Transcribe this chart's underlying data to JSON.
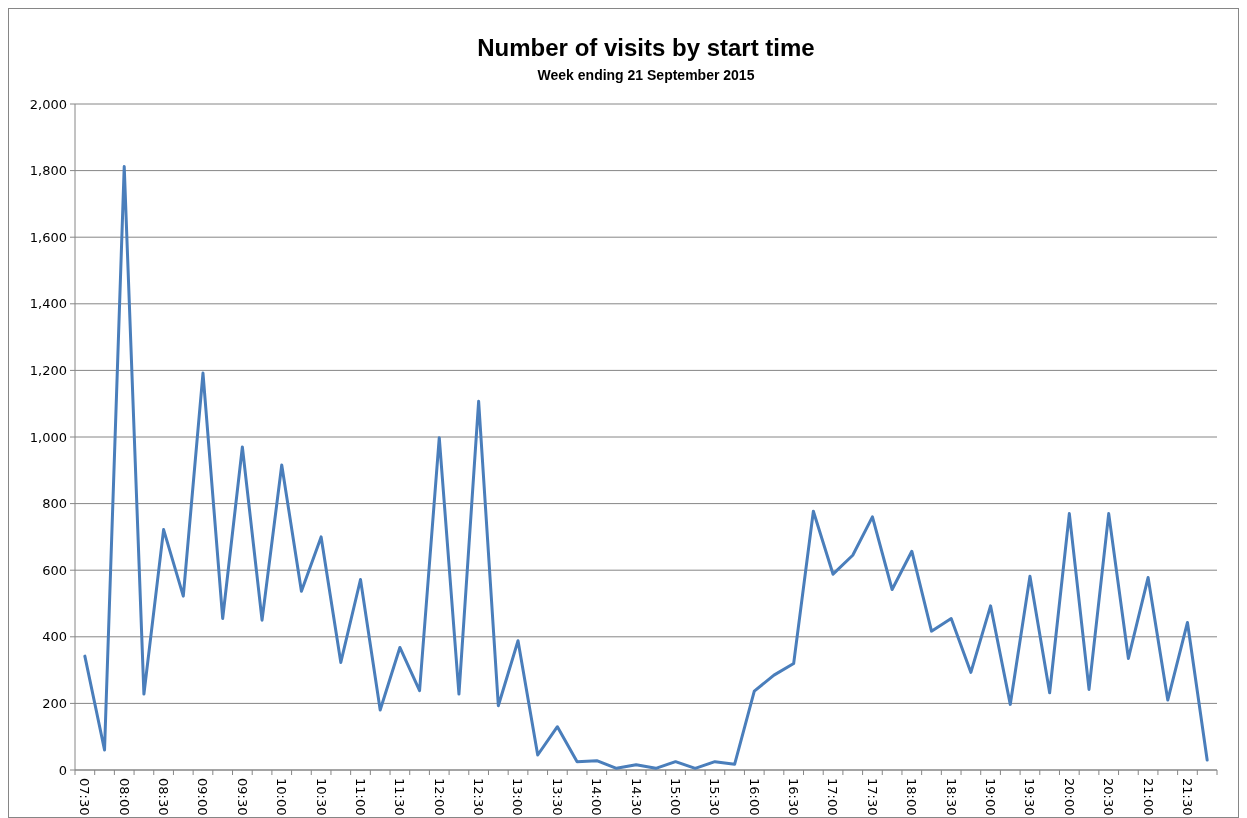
{
  "chart_data": {
    "type": "line",
    "title": "Number of visits by start time",
    "subtitle": "Week ending 21 September 2015",
    "categories": [
      "07:30",
      null,
      "08:00",
      null,
      "08:30",
      null,
      "09:00",
      null,
      "09:30",
      null,
      "10:00",
      null,
      "10:30",
      null,
      "11:00",
      null,
      "11:30",
      null,
      "12:00",
      null,
      "12:30",
      null,
      "13:00",
      null,
      "13:30",
      null,
      "14:00",
      null,
      "14:30",
      null,
      "15:00",
      null,
      "15:30",
      null,
      "16:00",
      null,
      "16:30",
      null,
      "17:00",
      null,
      "17:30",
      null,
      "18:00",
      null,
      "18:30",
      null,
      "19:00",
      null,
      "19:30",
      null,
      "20:00",
      null,
      "20:30",
      null,
      "21:00",
      null,
      "21:30",
      null
    ],
    "series": [
      {
        "color": "#4a7ebb",
        "values": [
          342,
          60,
          1812,
          228,
          722,
          522,
          1192,
          455,
          970,
          450,
          916,
          537,
          700,
          323,
          572,
          180,
          368,
          238,
          998,
          228,
          1107,
          193,
          388,
          45,
          130,
          25,
          28,
          5,
          16,
          5,
          25,
          5,
          25,
          17,
          237,
          285,
          320,
          777,
          588,
          645,
          760,
          542,
          657,
          417,
          455,
          293,
          493,
          197,
          582,
          232,
          770,
          242,
          770,
          335,
          578,
          210,
          443,
          30
        ]
      }
    ],
    "ylim": [
      0,
      2000
    ],
    "yticks": [
      {
        "value": 0,
        "label": "0"
      },
      {
        "value": 200,
        "label": "200"
      },
      {
        "value": 400,
        "label": "400"
      },
      {
        "value": 600,
        "label": "600"
      },
      {
        "value": 800,
        "label": "800"
      },
      {
        "value": 1000,
        "label": "1,000"
      },
      {
        "value": 1200,
        "label": "1,200"
      },
      {
        "value": 1400,
        "label": "1,400"
      },
      {
        "value": 1600,
        "label": "1,600"
      },
      {
        "value": 1800,
        "label": "1,800"
      },
      {
        "value": 2000,
        "label": "2,000"
      }
    ],
    "grid": "y",
    "marker": "none",
    "line_style": "solid"
  }
}
